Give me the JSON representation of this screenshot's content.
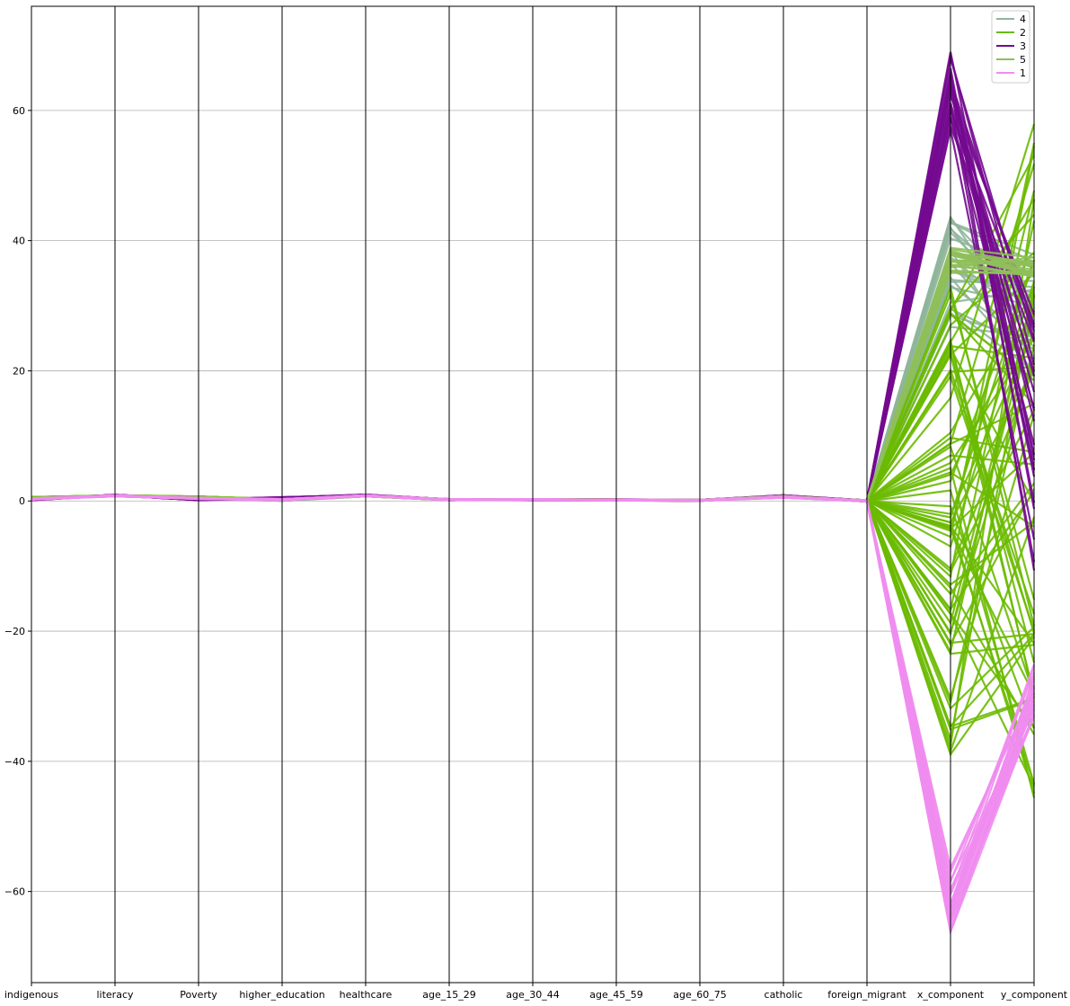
{
  "chart_data": {
    "type": "parallel-coordinates",
    "axes": [
      "indigenous",
      "literacy",
      "Poverty",
      "higher_education",
      "healthcare",
      "age_15_29",
      "age_30_44",
      "age_45_59",
      "age_60_75",
      "catholic",
      "foreign_migrant",
      "x_component",
      "y_component"
    ],
    "ylim": [
      -74,
      76
    ],
    "yticks": [
      -60,
      -40,
      -20,
      0,
      20,
      40,
      60
    ],
    "ytick_labels": [
      "−60",
      "−40",
      "−20",
      "0",
      "20",
      "40",
      "60"
    ],
    "grid": true,
    "legend_position": "top-right",
    "classes": [
      {
        "name": "4",
        "color": "#8fb59b",
        "profile": [
          0.3,
          0.8,
          0.4,
          0.1,
          0.8,
          0.2,
          0.2,
          0.15,
          0.1,
          0.6,
          0
        ],
        "x_range": [
          26,
          44
        ],
        "y_range": [
          18,
          38
        ]
      },
      {
        "name": "2",
        "color": "#6aba00",
        "profile": [
          0.5,
          0.8,
          0.6,
          0.2,
          0.8,
          0.2,
          0.2,
          0.15,
          0.1,
          0.7,
          0
        ],
        "x_range": [
          -39,
          34
        ],
        "y_range": [
          -47,
          58
        ]
      },
      {
        "name": "3",
        "color": "#740a90",
        "profile": [
          0.2,
          0.9,
          0.2,
          0.5,
          0.9,
          0.2,
          0.2,
          0.15,
          0.1,
          0.8,
          0
        ],
        "x_range": [
          57,
          69
        ],
        "y_range": [
          -12,
          30
        ]
      },
      {
        "name": "5",
        "color": "#8fbf5a",
        "profile": [
          0.4,
          0.8,
          0.5,
          0.2,
          0.8,
          0.2,
          0.2,
          0.15,
          0.1,
          0.7,
          0
        ],
        "x_range": [
          35,
          39
        ],
        "y_range": [
          34,
          38
        ]
      },
      {
        "name": "1",
        "color": "#f08cf0",
        "profile": [
          0.3,
          0.8,
          0.4,
          0.2,
          0.8,
          0.2,
          0.2,
          0.15,
          0.1,
          0.6,
          0
        ],
        "x_range": [
          -67,
          -55
        ],
        "y_range": [
          -34,
          -25
        ]
      }
    ]
  }
}
